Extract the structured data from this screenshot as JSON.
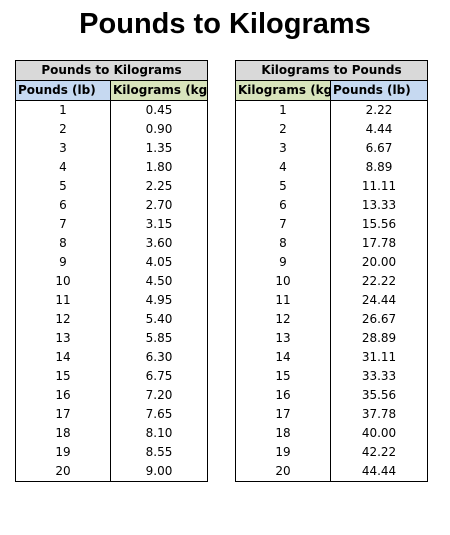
{
  "title": "Pounds to Kilograms",
  "tables": [
    {
      "caption": "Pounds to Kilograms",
      "headers": [
        "Pounds (lb)",
        "Kilograms (kg)"
      ],
      "rows": [
        [
          "1",
          "0.45"
        ],
        [
          "2",
          "0.90"
        ],
        [
          "3",
          "1.35"
        ],
        [
          "4",
          "1.80"
        ],
        [
          "5",
          "2.25"
        ],
        [
          "6",
          "2.70"
        ],
        [
          "7",
          "3.15"
        ],
        [
          "8",
          "3.60"
        ],
        [
          "9",
          "4.05"
        ],
        [
          "10",
          "4.50"
        ],
        [
          "11",
          "4.95"
        ],
        [
          "12",
          "5.40"
        ],
        [
          "13",
          "5.85"
        ],
        [
          "14",
          "6.30"
        ],
        [
          "15",
          "6.75"
        ],
        [
          "16",
          "7.20"
        ],
        [
          "17",
          "7.65"
        ],
        [
          "18",
          "8.10"
        ],
        [
          "19",
          "8.55"
        ],
        [
          "20",
          "9.00"
        ]
      ]
    },
    {
      "caption": "Kilograms to Pounds",
      "headers": [
        "Kilograms (kg)",
        "Pounds (lb)"
      ],
      "rows": [
        [
          "1",
          "2.22"
        ],
        [
          "2",
          "4.44"
        ],
        [
          "3",
          "6.67"
        ],
        [
          "4",
          "8.89"
        ],
        [
          "5",
          "11.11"
        ],
        [
          "6",
          "13.33"
        ],
        [
          "7",
          "15.56"
        ],
        [
          "8",
          "17.78"
        ],
        [
          "9",
          "20.00"
        ],
        [
          "10",
          "22.22"
        ],
        [
          "11",
          "24.44"
        ],
        [
          "12",
          "26.67"
        ],
        [
          "13",
          "28.89"
        ],
        [
          "14",
          "31.11"
        ],
        [
          "15",
          "33.33"
        ],
        [
          "16",
          "35.56"
        ],
        [
          "17",
          "37.78"
        ],
        [
          "18",
          "40.00"
        ],
        [
          "19",
          "42.22"
        ],
        [
          "20",
          "44.44"
        ]
      ]
    }
  ],
  "colors": {
    "caption_bg": "#d9d9d9",
    "header_blue": "#c6d9f1",
    "header_green": "#d8e4bc",
    "border": "#000000"
  }
}
